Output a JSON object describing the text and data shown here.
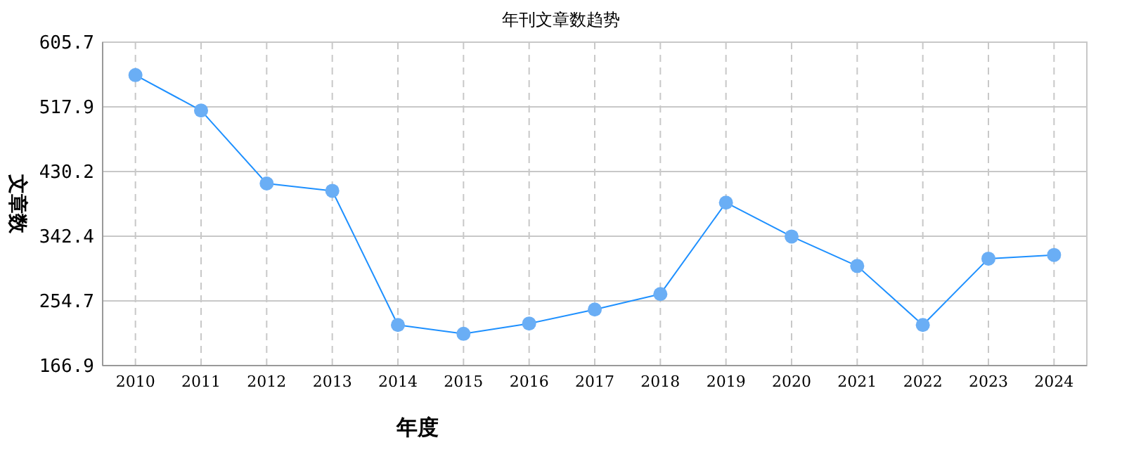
{
  "chart_data": {
    "type": "line",
    "title": "年刊文章数趋势",
    "xlabel": "年度",
    "ylabel": "文章数",
    "categories": [
      "2010",
      "2011",
      "2012",
      "2013",
      "2014",
      "2015",
      "2016",
      "2017",
      "2018",
      "2019",
      "2020",
      "2021",
      "2022",
      "2023",
      "2024"
    ],
    "series": [
      {
        "color": "#1e90ff",
        "values": [
          561,
          513,
          414,
          404,
          222,
          210,
          224,
          243,
          264,
          388,
          342,
          302,
          222,
          312,
          317
        ]
      }
    ],
    "ylim": [
      166.9,
      605.7
    ],
    "yticks": [
      166.9,
      254.7,
      342.4,
      430.2,
      517.9,
      605.7
    ],
    "grid": true,
    "marker": "circle",
    "line_style": "solid"
  }
}
